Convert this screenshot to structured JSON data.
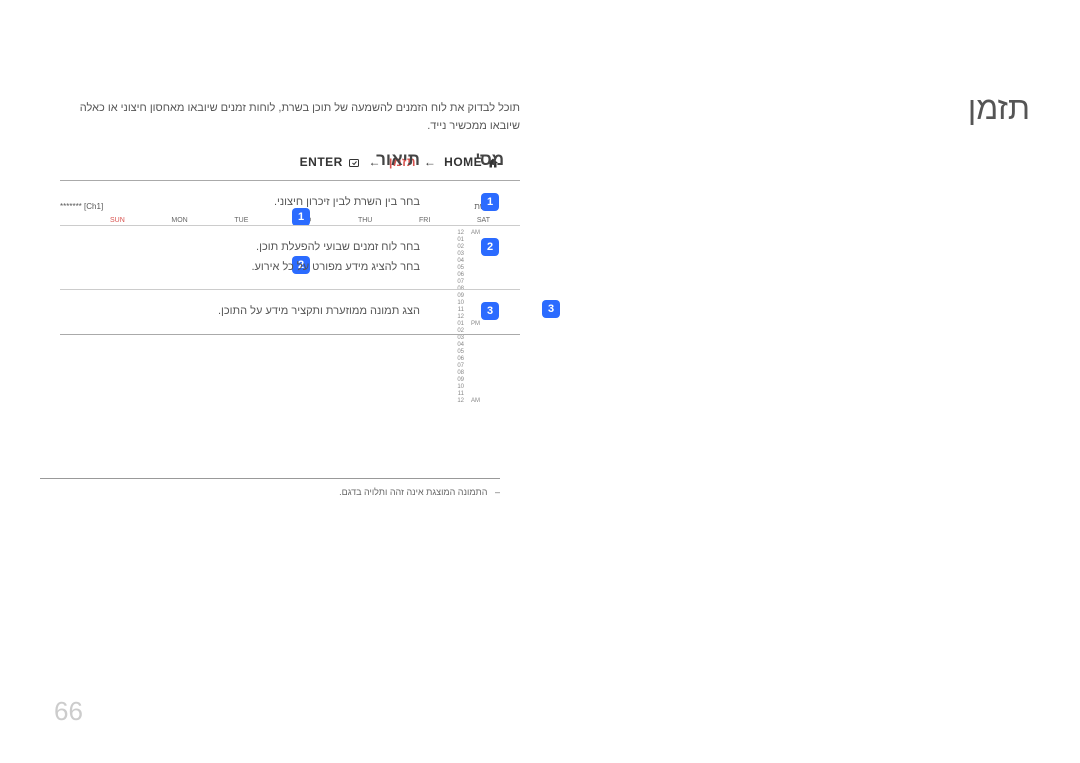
{
  "title": "תזמן",
  "intro": "תוכל לבדוק את לוח הזמנים להשמעה של תוכן בשרת, לוחות זמנים שיובאו מאחסון חיצוני או כאלה שיובאו ממכשיר נייד.",
  "breadcrumb": {
    "home": "HOME",
    "arrow": "←",
    "current": "תזמן",
    "enter": "ENTER"
  },
  "preview": {
    "network_label": "רשת",
    "channel": "[Ch1] *******",
    "days": [
      "SUN",
      "MON",
      "TUE",
      "WED",
      "THU",
      "FRI",
      "SAT"
    ],
    "hours_am": [
      "12",
      "01",
      "02",
      "03",
      "04",
      "05",
      "06",
      "07",
      "08",
      "09",
      "10",
      "11",
      "12"
    ],
    "hours_pm": [
      "01",
      "02",
      "03",
      "04",
      "05",
      "06",
      "07",
      "08",
      "09",
      "10",
      "11",
      "12"
    ],
    "am": "AM",
    "pm": "PM"
  },
  "callouts": {
    "n1": "1",
    "n2": "2",
    "n3": "3"
  },
  "footnote_dash": "–",
  "footnote": "התמונה המוצגת אינה זהה ותלויה בדגם.",
  "table": {
    "header_num": "מס'",
    "header_desc": "תיאור",
    "rows": [
      {
        "n": "1",
        "desc": "בחר בין השרת לבין זיכרון חיצוני."
      },
      {
        "n": "2",
        "desc": "בחר לוח זמנים שבועי להפעלת תוכן.\nבחר להציג מידע מפורט על כל אירוע."
      },
      {
        "n": "3",
        "desc": "הצג תמונה ממוזערת ותקציר מידע על התוכן."
      }
    ]
  },
  "page_number": "66",
  "colors": {
    "accent": "#2b6bff",
    "danger": "#d9534f",
    "text": "#555555",
    "muted": "#888888",
    "rule": "#999999"
  }
}
